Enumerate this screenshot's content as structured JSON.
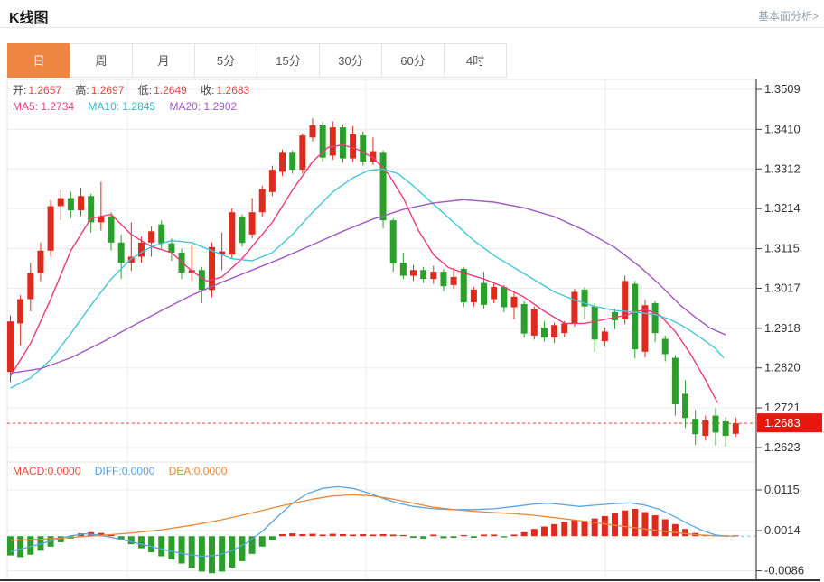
{
  "header": {
    "title": "K线图",
    "link": "基本面分析>"
  },
  "tabs": {
    "items": [
      "日",
      "周",
      "月",
      "5分",
      "15分",
      "30分",
      "60分",
      "4时"
    ],
    "active_index": 0
  },
  "ohlc": {
    "open_label": "开:",
    "open_value": "1.2657",
    "high_label": "高:",
    "high_value": "1.2697",
    "low_label": "低:",
    "low_value": "1.2649",
    "close_label": "收:",
    "close_value": "1.2683"
  },
  "ma_row": {
    "ma5": "MA5: 1.2734",
    "ma10": "MA10: 1.2845",
    "ma20": "MA20: 1.2902"
  },
  "macd_row": {
    "macd": "MACD:0.0000",
    "diff": "DIFF:0.0000",
    "dea": "DEA:0.0000"
  },
  "colors": {
    "up": "#df2a1e",
    "down": "#2b9f2b",
    "ma5_line": "#ee3a78",
    "ma10_line": "#45c6d8",
    "ma20_line": "#a05ac0",
    "diff_line": "#5aa4e4",
    "dea_line": "#e8883a",
    "ma5_text": "#ee3f80",
    "ma10_text": "#33b8c6",
    "ma20_text": "#a257c5",
    "value_text": "#e8463c",
    "diff_text": "#55a0e0",
    "dea_text": "#e8883a",
    "price_line": "#e8463c",
    "tag_bg": "#e8170d",
    "tag_text": "#ffffff",
    "grid": "#ededed",
    "panel_border": "#e2e2e2",
    "axis": "#444444",
    "axis_text": "#333333",
    "active_tab": "#ed8640",
    "zero_ext": "#7cc8e4"
  },
  "chart_data": {
    "type": "candlestick",
    "title": "K线图",
    "price_axis": {
      "ticks": [
        1.3509,
        1.341,
        1.3312,
        1.3214,
        1.3115,
        1.3017,
        1.2918,
        1.282,
        1.2721,
        1.2623
      ]
    },
    "current_price": 1.2683,
    "ohlc_display": {
      "open": 1.2657,
      "high": 1.2697,
      "low": 1.2649,
      "close": 1.2683
    },
    "ma_values": {
      "ma5": 1.2734,
      "ma10": 1.2845,
      "ma20": 1.2902
    },
    "candles": [
      [
        1.281,
        1.295,
        1.2785,
        1.2935
      ],
      [
        1.293,
        1.3,
        1.2875,
        1.299
      ],
      [
        1.299,
        1.308,
        1.296,
        1.3055
      ],
      [
        1.3055,
        1.313,
        1.3035,
        1.311
      ],
      [
        1.311,
        1.3235,
        1.3095,
        1.322
      ],
      [
        1.322,
        1.326,
        1.3185,
        1.324
      ],
      [
        1.324,
        1.3255,
        1.319,
        1.321
      ],
      [
        1.321,
        1.3265,
        1.3195,
        1.3245
      ],
      [
        1.3245,
        1.325,
        1.3155,
        1.318
      ],
      [
        1.318,
        1.328,
        1.316,
        1.3195
      ],
      [
        1.3195,
        1.3205,
        1.311,
        1.313
      ],
      [
        1.313,
        1.315,
        1.304,
        1.308
      ],
      [
        1.308,
        1.318,
        1.306,
        1.3095
      ],
      [
        1.3095,
        1.3145,
        1.308,
        1.313
      ],
      [
        1.313,
        1.317,
        1.3095,
        1.3158
      ],
      [
        1.3175,
        1.3185,
        1.3115,
        1.3128
      ],
      [
        1.3128,
        1.314,
        1.3085,
        1.3105
      ],
      [
        1.3105,
        1.3115,
        1.304,
        1.3056
      ],
      [
        1.3056,
        1.3125,
        1.3035,
        1.3062
      ],
      [
        1.3062,
        1.307,
        1.298,
        1.3013
      ],
      [
        1.3013,
        1.313,
        1.2995,
        1.3119
      ],
      [
        1.31,
        1.3155,
        1.3062,
        1.3108
      ],
      [
        1.31,
        1.3215,
        1.309,
        1.3205
      ],
      [
        1.3194,
        1.32,
        1.312,
        1.3129
      ],
      [
        1.315,
        1.324,
        1.314,
        1.3205
      ],
      [
        1.3205,
        1.327,
        1.3195,
        1.3262
      ],
      [
        1.3255,
        1.332,
        1.3245,
        1.331
      ],
      [
        1.3305,
        1.336,
        1.3295,
        1.3352
      ],
      [
        1.3352,
        1.3358,
        1.33,
        1.331
      ],
      [
        1.331,
        1.34,
        1.33,
        1.3395
      ],
      [
        1.339,
        1.3437,
        1.338,
        1.342
      ],
      [
        1.342,
        1.3428,
        1.333,
        1.334
      ],
      [
        1.3345,
        1.343,
        1.3335,
        1.3415
      ],
      [
        1.3415,
        1.3422,
        1.3328,
        1.3338
      ],
      [
        1.3338,
        1.3418,
        1.333,
        1.3398
      ],
      [
        1.3395,
        1.3405,
        1.332,
        1.333
      ],
      [
        1.333,
        1.339,
        1.3322,
        1.3356
      ],
      [
        1.3352,
        1.3358,
        1.3165,
        1.3185
      ],
      [
        1.3185,
        1.319,
        1.3058,
        1.3078
      ],
      [
        1.308,
        1.3105,
        1.304,
        1.3048
      ],
      [
        1.3048,
        1.3075,
        1.3035,
        1.3062
      ],
      [
        1.3062,
        1.307,
        1.303,
        1.304
      ],
      [
        1.304,
        1.3072,
        1.3028,
        1.3058
      ],
      [
        1.3058,
        1.3065,
        1.301,
        1.3022
      ],
      [
        1.3025,
        1.3068,
        1.3015,
        1.3045
      ],
      [
        1.3065,
        1.307,
        1.297,
        1.2982
      ],
      [
        1.2982,
        1.302,
        1.2972,
        1.3014
      ],
      [
        1.303,
        1.3058,
        1.2966,
        1.2976
      ],
      [
        1.299,
        1.3028,
        1.298,
        1.302
      ],
      [
        1.302,
        1.3025,
        1.2958,
        1.297
      ],
      [
        1.297,
        1.301,
        1.294,
        1.2996
      ],
      [
        1.2978,
        1.2985,
        1.2895,
        1.2905
      ],
      [
        1.29,
        1.2972,
        1.289,
        1.2965
      ],
      [
        1.292,
        1.2935,
        1.2885,
        1.2895
      ],
      [
        1.2895,
        1.2932,
        1.2882,
        1.2926
      ],
      [
        1.2906,
        1.2936,
        1.2896,
        1.293
      ],
      [
        1.293,
        1.3015,
        1.2922,
        1.3008
      ],
      [
        1.3014,
        1.302,
        1.294,
        1.2972
      ],
      [
        1.2972,
        1.298,
        1.286,
        1.289
      ],
      [
        1.2886,
        1.292,
        1.2872,
        1.291
      ],
      [
        1.2958,
        1.2966,
        1.2916,
        1.2938
      ],
      [
        1.294,
        1.3048,
        1.2928,
        1.3035
      ],
      [
        1.3028,
        1.3035,
        1.2844,
        1.2866
      ],
      [
        1.286,
        1.2988,
        1.2846,
        1.2975
      ],
      [
        1.298,
        1.2985,
        1.2884,
        1.2906
      ],
      [
        1.2892,
        1.29,
        1.2836,
        1.2854
      ],
      [
        1.2845,
        1.2852,
        1.2702,
        1.273
      ],
      [
        1.2756,
        1.279,
        1.2672,
        1.2696
      ],
      [
        1.2694,
        1.2716,
        1.263,
        1.2656
      ],
      [
        1.2652,
        1.2702,
        1.264,
        1.269
      ],
      [
        1.2702,
        1.272,
        1.2628,
        1.266
      ],
      [
        1.2688,
        1.2698,
        1.2625,
        1.2652
      ],
      [
        1.2657,
        1.2697,
        1.2649,
        1.2683
      ]
    ],
    "ma5": [
      [
        0,
        1.28
      ],
      [
        2,
        1.288
      ],
      [
        4,
        1.299
      ],
      [
        6,
        1.311
      ],
      [
        8,
        1.319
      ],
      [
        10,
        1.32
      ],
      [
        12,
        1.315
      ],
      [
        14,
        1.312
      ],
      [
        16,
        1.3105
      ],
      [
        18,
        1.306
      ],
      [
        19.5,
        1.3035
      ],
      [
        21,
        1.3045
      ],
      [
        23,
        1.309
      ],
      [
        26,
        1.318
      ],
      [
        28,
        1.326
      ],
      [
        30,
        1.333
      ],
      [
        31.5,
        1.3365
      ],
      [
        33,
        1.3372
      ],
      [
        34.5,
        1.336
      ],
      [
        36,
        1.334
      ],
      [
        37.5,
        1.33
      ],
      [
        39,
        1.324
      ],
      [
        40.5,
        1.316
      ],
      [
        42,
        1.31
      ],
      [
        43.5,
        1.3068
      ],
      [
        45,
        1.3055
      ],
      [
        47,
        1.304
      ],
      [
        49,
        1.302
      ],
      [
        51,
        1.2995
      ],
      [
        53,
        1.296
      ],
      [
        55,
        1.293
      ],
      [
        57,
        1.293
      ],
      [
        59,
        1.294
      ],
      [
        61,
        1.295
      ],
      [
        63,
        1.2965
      ],
      [
        64.5,
        1.295
      ],
      [
        66,
        1.291
      ],
      [
        67.5,
        1.2855
      ],
      [
        69,
        1.279
      ],
      [
        70.2,
        1.2734
      ]
    ],
    "ma10": [
      [
        0,
        1.277
      ],
      [
        2,
        1.2795
      ],
      [
        4,
        1.284
      ],
      [
        6,
        1.2905
      ],
      [
        8,
        1.2975
      ],
      [
        10,
        1.304
      ],
      [
        12,
        1.309
      ],
      [
        14,
        1.312
      ],
      [
        16,
        1.3135
      ],
      [
        18,
        1.313
      ],
      [
        20,
        1.311
      ],
      [
        22,
        1.309
      ],
      [
        24,
        1.3085
      ],
      [
        26,
        1.3105
      ],
      [
        28,
        1.315
      ],
      [
        30,
        1.3205
      ],
      [
        32,
        1.3255
      ],
      [
        34,
        1.329
      ],
      [
        35.5,
        1.3308
      ],
      [
        37,
        1.3312
      ],
      [
        38.5,
        1.33
      ],
      [
        40,
        1.327
      ],
      [
        42,
        1.3225
      ],
      [
        44,
        1.318
      ],
      [
        46,
        1.3135
      ],
      [
        48,
        1.3098
      ],
      [
        50,
        1.3068
      ],
      [
        52,
        1.3038
      ],
      [
        54,
        1.3008
      ],
      [
        56,
        1.2988
      ],
      [
        58,
        1.2972
      ],
      [
        60,
        1.2962
      ],
      [
        62,
        1.2958
      ],
      [
        64,
        1.2952
      ],
      [
        65.5,
        1.294
      ],
      [
        67,
        1.292
      ],
      [
        68.5,
        1.2895
      ],
      [
        70,
        1.2868
      ],
      [
        70.8,
        1.2845
      ]
    ],
    "ma20": [
      [
        0,
        1.2807
      ],
      [
        3,
        1.2818
      ],
      [
        6,
        1.2845
      ],
      [
        9,
        1.2882
      ],
      [
        12,
        1.2922
      ],
      [
        15,
        1.2962
      ],
      [
        18,
        1.3
      ],
      [
        21,
        1.3032
      ],
      [
        24,
        1.3062
      ],
      [
        27,
        1.3092
      ],
      [
        30,
        1.3125
      ],
      [
        33,
        1.3158
      ],
      [
        36,
        1.3188
      ],
      [
        39,
        1.3212
      ],
      [
        42,
        1.3228
      ],
      [
        45,
        1.3236
      ],
      [
        48,
        1.323
      ],
      [
        51,
        1.3216
      ],
      [
        54,
        1.3194
      ],
      [
        57,
        1.316
      ],
      [
        60,
        1.3118
      ],
      [
        62.5,
        1.307
      ],
      [
        64.5,
        1.3025
      ],
      [
        66.5,
        1.2975
      ],
      [
        68,
        1.2945
      ],
      [
        69.5,
        1.2918
      ],
      [
        71,
        1.2902
      ]
    ],
    "macd": {
      "axis_ticks": [
        0.0115,
        0.0014,
        -0.0086
      ],
      "values": {
        "macd": 0.0,
        "diff": 0.0,
        "dea": 0.0
      },
      "hist": [
        -0.0048,
        -0.0052,
        -0.0046,
        -0.0036,
        -0.0026,
        -0.0015,
        -0.0006,
        0.0007,
        0.001,
        0.0008,
        0.0004,
        -0.001,
        -0.002,
        -0.003,
        -0.004,
        -0.005,
        -0.0058,
        -0.0068,
        -0.0078,
        -0.0088,
        -0.0092,
        -0.0088,
        -0.0078,
        -0.0062,
        -0.0044,
        -0.0026,
        -0.001,
        0.0005,
        0.0007,
        0.0005,
        0.0006,
        0.0004,
        0.0006,
        0.0005,
        0.0004,
        0.0005,
        0.0004,
        0.0005,
        0.0004,
        0.0003,
        -0.0004,
        -0.0006,
        0.0004,
        -0.0005,
        -0.0004,
        0.0003,
        -0.0004,
        0.0004,
        0.0004,
        -0.0003,
        0.0004,
        0.001,
        0.0018,
        0.0024,
        0.003,
        0.0036,
        0.004,
        0.0038,
        0.0044,
        0.005,
        0.0058,
        0.0064,
        0.0068,
        0.006,
        0.0052,
        0.0042,
        0.003,
        0.0018,
        0.0008,
        0.0003,
        0.0001,
        0.0,
        0.0
      ],
      "diff": [
        [
          0,
          -0.0038
        ],
        [
          2,
          -0.0026
        ],
        [
          4,
          -0.0012
        ],
        [
          6,
          0.0001
        ],
        [
          7.5,
          0.0006
        ],
        [
          9,
          0.0002
        ],
        [
          11,
          -0.0008
        ],
        [
          13,
          -0.002
        ],
        [
          15,
          -0.0032
        ],
        [
          17,
          -0.0043
        ],
        [
          19,
          -0.005
        ],
        [
          20.5,
          -0.0048
        ],
        [
          22,
          -0.0036
        ],
        [
          23.5,
          -0.0016
        ],
        [
          25,
          0.0012
        ],
        [
          26.5,
          0.0048
        ],
        [
          28,
          0.0082
        ],
        [
          29.5,
          0.0106
        ],
        [
          31,
          0.0119
        ],
        [
          32.5,
          0.0123
        ],
        [
          34,
          0.0119
        ],
        [
          35.5,
          0.0108
        ],
        [
          37,
          0.0094
        ],
        [
          38.5,
          0.0082
        ],
        [
          40,
          0.0074
        ],
        [
          42,
          0.0068
        ],
        [
          44,
          0.0066
        ],
        [
          46,
          0.0066
        ],
        [
          48,
          0.0068
        ],
        [
          50,
          0.0074
        ],
        [
          52,
          0.008
        ],
        [
          53.5,
          0.0082
        ],
        [
          55,
          0.0078
        ],
        [
          56.5,
          0.0074
        ],
        [
          58,
          0.0077
        ],
        [
          60,
          0.0081
        ],
        [
          61.5,
          0.0083
        ],
        [
          63,
          0.0077
        ],
        [
          64.5,
          0.0066
        ],
        [
          66,
          0.0048
        ],
        [
          67.5,
          0.0028
        ],
        [
          69,
          0.0011
        ],
        [
          70,
          0.0003
        ],
        [
          71,
          0
        ],
        [
          72,
          0
        ]
      ],
      "dea": [
        [
          0,
          -0.001
        ],
        [
          3,
          -0.0008
        ],
        [
          6,
          -0.0003
        ],
        [
          9,
          0.0002
        ],
        [
          12,
          0.0008
        ],
        [
          15,
          0.0016
        ],
        [
          18,
          0.0027
        ],
        [
          21,
          0.0041
        ],
        [
          24,
          0.0058
        ],
        [
          27,
          0.0076
        ],
        [
          30,
          0.0092
        ],
        [
          32,
          0.01
        ],
        [
          34,
          0.0103
        ],
        [
          36,
          0.01
        ],
        [
          38,
          0.0092
        ],
        [
          40,
          0.0082
        ],
        [
          42,
          0.0072
        ],
        [
          44,
          0.0066
        ],
        [
          46,
          0.0062
        ],
        [
          48,
          0.0059
        ],
        [
          50,
          0.0056
        ],
        [
          52,
          0.0052
        ],
        [
          54,
          0.0046
        ],
        [
          56,
          0.004
        ],
        [
          58,
          0.0034
        ],
        [
          60,
          0.0027
        ],
        [
          62,
          0.0021
        ],
        [
          64,
          0.0015
        ],
        [
          66,
          0.0009
        ],
        [
          68,
          0.0004
        ],
        [
          70,
          0.0001
        ],
        [
          71,
          0
        ],
        [
          72,
          0
        ]
      ]
    }
  }
}
